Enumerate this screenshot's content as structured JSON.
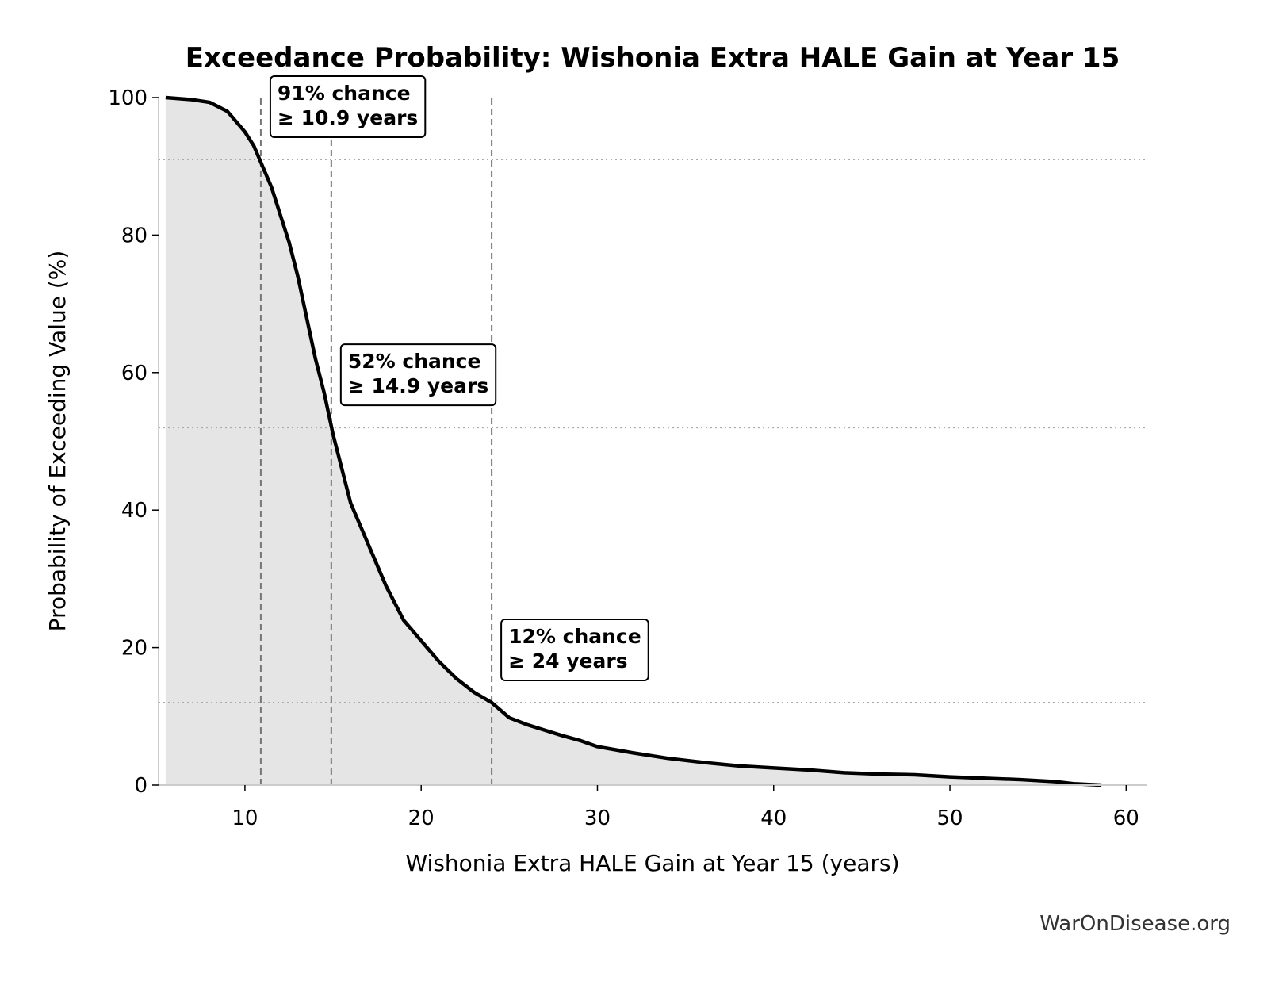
{
  "chart_data": {
    "type": "area-line",
    "title": "Exceedance Probability: Wishonia Extra HALE Gain at Year 15",
    "x_label": "Wishonia Extra HALE Gain at Year 15 (years)",
    "y_label": "Probability of Exceeding Value (%)",
    "footer": "WarOnDisease.org",
    "color": "#000000",
    "fill_color": "#e5e5e5",
    "x": [
      5.5,
      7,
      8,
      9,
      10,
      10.5,
      11,
      11.5,
      12,
      12.5,
      13,
      13.5,
      14,
      14.5,
      15,
      15.5,
      16,
      17,
      18,
      19,
      20,
      21,
      22,
      23,
      24,
      25,
      26,
      27,
      28,
      29,
      30,
      32,
      34,
      36,
      38,
      40,
      42,
      44,
      46,
      48,
      50,
      52,
      54,
      56,
      57,
      58.6
    ],
    "values": [
      100,
      99.7,
      99.3,
      98,
      95,
      93,
      90,
      87,
      83,
      79,
      74,
      68,
      62,
      57,
      51,
      46,
      41,
      35,
      29,
      24,
      21,
      18,
      15.5,
      13.5,
      12,
      9.8,
      8.8,
      8,
      7.2,
      6.5,
      5.6,
      4.7,
      3.9,
      3.3,
      2.8,
      2.5,
      2.2,
      1.8,
      1.6,
      1.5,
      1.2,
      1.0,
      0.8,
      0.5,
      0.2,
      0
    ],
    "annotations": [
      {
        "x": 10.9,
        "y": 91,
        "lines": [
          "91% chance",
          "≥ 10.9 years"
        ]
      },
      {
        "x": 14.9,
        "y": 52,
        "lines": [
          "52% chance",
          "≥ 14.9 years"
        ]
      },
      {
        "x": 24,
        "y": 12,
        "lines": [
          "12% chance",
          "≥ 24 years"
        ]
      }
    ],
    "xlim": [
      5.1,
      61.2
    ],
    "ylim": [
      0,
      100
    ],
    "xticks": [
      10,
      20,
      30,
      40,
      50,
      60
    ],
    "yticks": [
      0,
      20,
      40,
      60,
      80,
      100
    ]
  }
}
